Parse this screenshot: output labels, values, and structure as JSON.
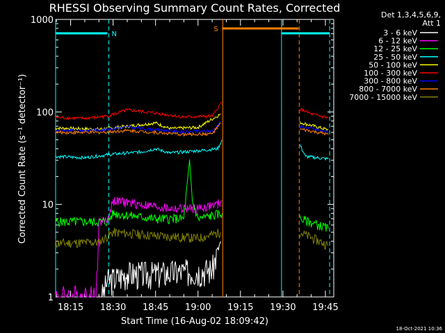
{
  "chart_data": {
    "type": "line",
    "title": "RHESSI Observing Summary Count Rates, Corrected",
    "xlabel": "Start Time (16-Aug-02 18:09:42)",
    "ylabel": "Corrected Count Rate (s⁻¹ detector⁻¹)",
    "ylim": [
      1,
      1000
    ],
    "yscale": "log",
    "xlim_minutes": [
      18.16,
      19.8
    ],
    "x_ticks": [
      "18:15",
      "18:30",
      "18:45",
      "19:00",
      "19:15",
      "19:30",
      "19:45"
    ],
    "y_ticks": [
      "1",
      "10",
      "100",
      "1000"
    ],
    "legend_header": [
      "Det 1,3,4,5,6,9,",
      "Att 1"
    ],
    "footer_date": "18-Oct-2021 10:36",
    "flags": [
      {
        "label": "N",
        "color": "#00ffff",
        "start": "18:09:42",
        "end": "18:28:00"
      },
      {
        "label": "S",
        "color": "#ff8000",
        "start": "19:08:30",
        "end": "19:35:30"
      },
      {
        "label": "",
        "color": "#00ffff",
        "start": "19:29:30",
        "end": "19:46:30"
      }
    ],
    "vlines": [
      {
        "time": "18:09:42",
        "color": "#00ffff",
        "style": "solid"
      },
      {
        "time": "18:28:30",
        "color": "#00ffff",
        "style": "dashed"
      },
      {
        "time": "19:08:45",
        "color": "#ff8000",
        "style": "solid"
      },
      {
        "time": "19:29:30",
        "color": "#00ffff",
        "style": "solid"
      },
      {
        "time": "19:35:45",
        "color": "#ff8000",
        "style": "dashed"
      },
      {
        "time": "19:46:30",
        "color": "#00ffff",
        "style": "dashed"
      }
    ],
    "series": [
      {
        "name": "3 - 6 keV",
        "color": "#ffffff",
        "points": [
          [
            "18:26",
            1.0
          ],
          [
            "18:28",
            1.5
          ],
          [
            "18:35",
            1.8
          ],
          [
            "18:45",
            1.8
          ],
          [
            "18:55",
            1.9
          ],
          [
            "19:05",
            2.0
          ],
          [
            "19:08",
            4.0
          ]
        ]
      },
      {
        "name": "6 - 12 keV",
        "color": "#ff00ff",
        "points": [
          [
            "18:09:42",
            1.0
          ],
          [
            "18:24",
            1.0
          ],
          [
            "18:25",
            6.5
          ],
          [
            "18:28",
            6.7
          ],
          [
            "18:30",
            11.0
          ],
          [
            "18:40",
            10.0
          ],
          [
            "18:50",
            9.0
          ],
          [
            "19:00",
            9.0
          ],
          [
            "19:07",
            10.0
          ],
          [
            "19:08:30",
            11.0
          ]
        ]
      },
      {
        "name": "12 - 25 keV",
        "color": "#00ff00",
        "points": [
          [
            "18:09:42",
            6.5
          ],
          [
            "18:28",
            6.5
          ],
          [
            "18:30",
            8.0
          ],
          [
            "18:45",
            7.0
          ],
          [
            "18:55",
            7.0
          ],
          [
            "18:57",
            30.0
          ],
          [
            "18:58",
            11.0
          ],
          [
            "19:00",
            7.0
          ],
          [
            "19:08:30",
            8.0
          ],
          [
            "19:36",
            7.0
          ],
          [
            "19:46",
            5.5
          ]
        ]
      },
      {
        "name": "25 - 50 keV",
        "color": "#00ffff",
        "points": [
          [
            "18:09:42",
            33
          ],
          [
            "18:20",
            32
          ],
          [
            "18:30",
            35
          ],
          [
            "18:40",
            37
          ],
          [
            "18:45",
            40
          ],
          [
            "18:50",
            36
          ],
          [
            "19:00",
            38
          ],
          [
            "19:07",
            40
          ],
          [
            "19:08:30",
            50
          ],
          [
            "19:36",
            44
          ],
          [
            "19:38",
            33
          ],
          [
            "19:46",
            31
          ]
        ]
      },
      {
        "name": "50 - 100 keV",
        "color": "#ffff00",
        "points": [
          [
            "18:09:42",
            67
          ],
          [
            "18:25",
            65
          ],
          [
            "18:35",
            70
          ],
          [
            "18:45",
            76
          ],
          [
            "18:50",
            66
          ],
          [
            "19:00",
            68
          ],
          [
            "19:08",
            95
          ],
          [
            "19:36",
            77
          ],
          [
            "19:46",
            64
          ]
        ]
      },
      {
        "name": "100 - 300 keV",
        "color": "#ff0000",
        "points": [
          [
            "18:09:42",
            87
          ],
          [
            "18:20",
            85
          ],
          [
            "18:28",
            90
          ],
          [
            "18:35",
            105
          ],
          [
            "18:45",
            97
          ],
          [
            "18:55",
            88
          ],
          [
            "19:05",
            90
          ],
          [
            "19:08:30",
            128
          ],
          [
            "19:36",
            108
          ],
          [
            "19:40",
            95
          ],
          [
            "19:46",
            86
          ]
        ]
      },
      {
        "name": "300 - 800 keV",
        "color": "#0000ff",
        "points": [
          [
            "18:09:42",
            62
          ],
          [
            "18:25",
            64
          ],
          [
            "18:35",
            69
          ],
          [
            "18:45",
            64
          ],
          [
            "18:55",
            61
          ],
          [
            "19:05",
            62
          ],
          [
            "19:08",
            78
          ],
          [
            "19:36",
            70
          ],
          [
            "19:46",
            61
          ]
        ]
      },
      {
        "name": "800 - 7000 keV",
        "color": "#ff8000",
        "points": [
          [
            "18:09:42",
            60
          ],
          [
            "18:25",
            60
          ],
          [
            "18:35",
            63
          ],
          [
            "18:45",
            60
          ],
          [
            "18:55",
            57
          ],
          [
            "19:05",
            58
          ],
          [
            "19:08",
            75
          ],
          [
            "19:36",
            65
          ],
          [
            "19:46",
            57
          ]
        ]
      },
      {
        "name": "7000 - 15000 keV",
        "color": "#808000",
        "points": [
          [
            "18:09:42",
            3.8
          ],
          [
            "18:25",
            3.9
          ],
          [
            "18:30",
            5.0
          ],
          [
            "18:45",
            4.6
          ],
          [
            "19:00",
            4.3
          ],
          [
            "19:08",
            5.0
          ],
          [
            "19:36",
            5.0
          ],
          [
            "19:46",
            3.6
          ]
        ]
      }
    ]
  }
}
